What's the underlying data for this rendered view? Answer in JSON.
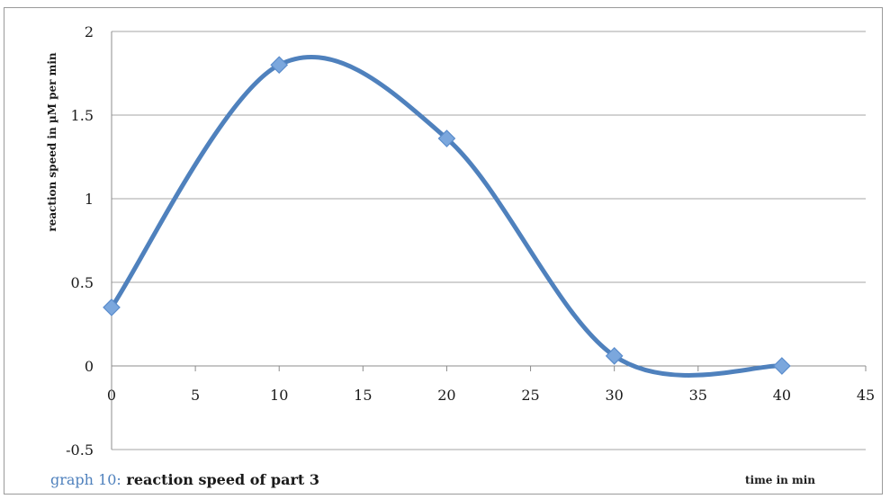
{
  "chart_data": {
    "type": "line",
    "x": [
      0,
      10,
      20,
      30,
      40
    ],
    "series": [
      {
        "values": [
          0.35,
          1.8,
          1.36,
          0.06,
          0.0
        ]
      }
    ],
    "xlabel": "time in min",
    "ylabel": "reaction speed in µM per min",
    "xlim": [
      0,
      45
    ],
    "ylim": [
      -0.5,
      2
    ],
    "xticks": [
      "0",
      "5",
      "10",
      "15",
      "20",
      "25",
      "30",
      "35",
      "40",
      "45"
    ],
    "yticks": [
      "-0.5",
      "0",
      "0.5",
      "1",
      "1.5",
      "2"
    ],
    "grid": true,
    "smoothed": true,
    "marker": "diamond",
    "line_color": "#4f81bd",
    "marker_color": "#7ba7dd"
  },
  "caption": {
    "prefix": "graph 10:",
    "text": " reaction speed of part 3"
  }
}
